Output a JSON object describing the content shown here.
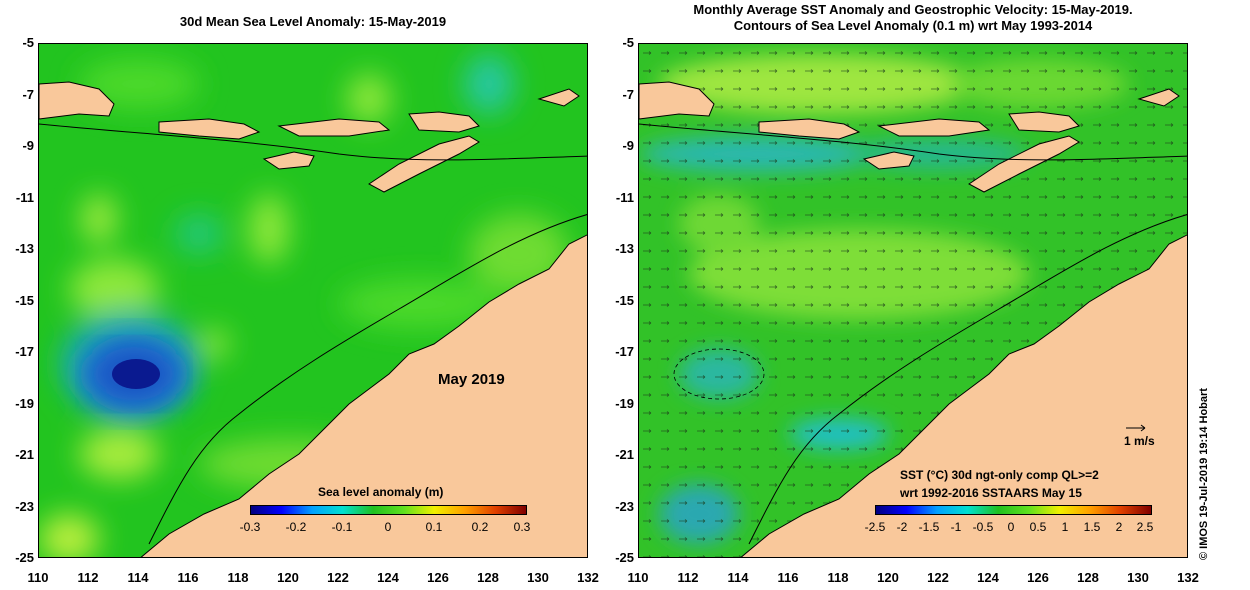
{
  "left_panel": {
    "title": "30d Mean Sea Level Anomaly: 15-May-2019",
    "month_label": "May 2019",
    "colorbar_title": "Sea level anomaly (m)",
    "colorbar_ticks": [
      "-0.3",
      "-0.2",
      "-0.1",
      "0",
      "0.1",
      "0.2",
      "0.3"
    ]
  },
  "right_panel": {
    "title_line1": "Monthly Average SST Anomaly  and Geostrophic Velocity: 15-May-2019.",
    "title_line2": "Contours of Sea Level Anomaly (0.1 m) wrt May 1993-2014",
    "velocity_scale_label": "1 m/s",
    "colorbar_title_line1": "SST (°C) 30d ngt-only comp QL>=2",
    "colorbar_title_line2": "wrt 1992-2016 SSTAARS May 15",
    "colorbar_ticks": [
      "-2.5",
      "-2",
      "-1.5",
      "-1",
      "-0.5",
      "0",
      "0.5",
      "1",
      "1.5",
      "2",
      "2.5"
    ]
  },
  "axes": {
    "lat_ticks": [
      "-5",
      "-7",
      "-9",
      "-11",
      "-13",
      "-15",
      "-17",
      "-19",
      "-21",
      "-23",
      "-25"
    ],
    "lon_ticks": [
      "110",
      "112",
      "114",
      "116",
      "118",
      "120",
      "122",
      "124",
      "126",
      "128",
      "130",
      "132"
    ],
    "lat_range": [
      -25,
      -5
    ],
    "lon_range": [
      110,
      132
    ]
  },
  "credit": "© IMOS 19-Jul-2019 19:14 Hobart",
  "colors": {
    "land": "#f9c89b",
    "ocean_base": "#21c81e",
    "ocean_light": "#7ae63a",
    "low_anomaly": "#1230a8",
    "cyan": "#27c8d0"
  }
}
